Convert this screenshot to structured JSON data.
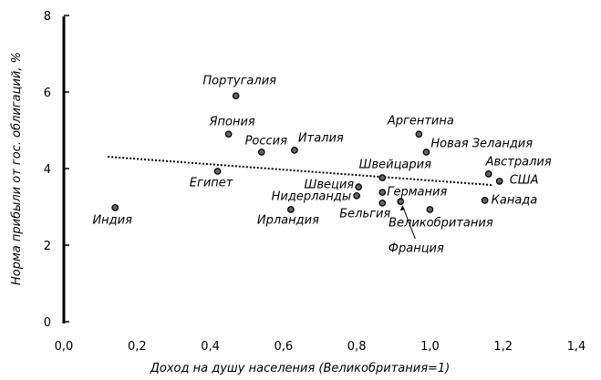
{
  "chart_data": {
    "type": "scatter",
    "xlabel": "Доход на душу населения (Великобритания=1)",
    "ylabel": "Норма прибыли от гос. облигаций, %",
    "xlim": [
      0,
      1.4
    ],
    "ylim": [
      0,
      8
    ],
    "xticks": [
      "0,0",
      "0,2",
      "0,4",
      "0,6",
      "0,8",
      "1,0",
      "1,2",
      "1,4"
    ],
    "yticks": [
      "0",
      "2",
      "4",
      "6",
      "8"
    ],
    "grid": false,
    "points": [
      {
        "label": "Индия",
        "x": 0.14,
        "y": 2.98
      },
      {
        "label": "Египет",
        "x": 0.42,
        "y": 3.93
      },
      {
        "label": "Португалия",
        "x": 0.47,
        "y": 5.9
      },
      {
        "label": "Япония",
        "x": 0.45,
        "y": 4.9
      },
      {
        "label": "Россия",
        "x": 0.54,
        "y": 4.43
      },
      {
        "label": "Италия",
        "x": 0.63,
        "y": 4.48
      },
      {
        "label": "Ирландия",
        "x": 0.62,
        "y": 2.93
      },
      {
        "label": "Нидерланды",
        "x": 0.8,
        "y": 3.29
      },
      {
        "label": "Швеция",
        "x": 0.805,
        "y": 3.52
      },
      {
        "label": "Швейцария",
        "x": 0.87,
        "y": 3.76
      },
      {
        "label": "Аргентина",
        "x": 0.97,
        "y": 4.9
      },
      {
        "label": "Новая Зеландия",
        "x": 0.99,
        "y": 4.43
      },
      {
        "label": "Германия",
        "x": 0.87,
        "y": 3.38
      },
      {
        "label": "Бельгия",
        "x": 0.87,
        "y": 3.1
      },
      {
        "label": "Франция",
        "x": 0.92,
        "y": 3.14
      },
      {
        "label": "Великобритания",
        "x": 1.0,
        "y": 2.93
      },
      {
        "label": "Австралия",
        "x": 1.16,
        "y": 3.86
      },
      {
        "label": "США",
        "x": 1.19,
        "y": 3.67
      },
      {
        "label": "Канада",
        "x": 1.15,
        "y": 3.17
      }
    ],
    "trendline": {
      "style": "dotted",
      "from": {
        "x": 0.12,
        "y": 4.31
      },
      "to": {
        "x": 1.17,
        "y": 3.57
      }
    }
  }
}
